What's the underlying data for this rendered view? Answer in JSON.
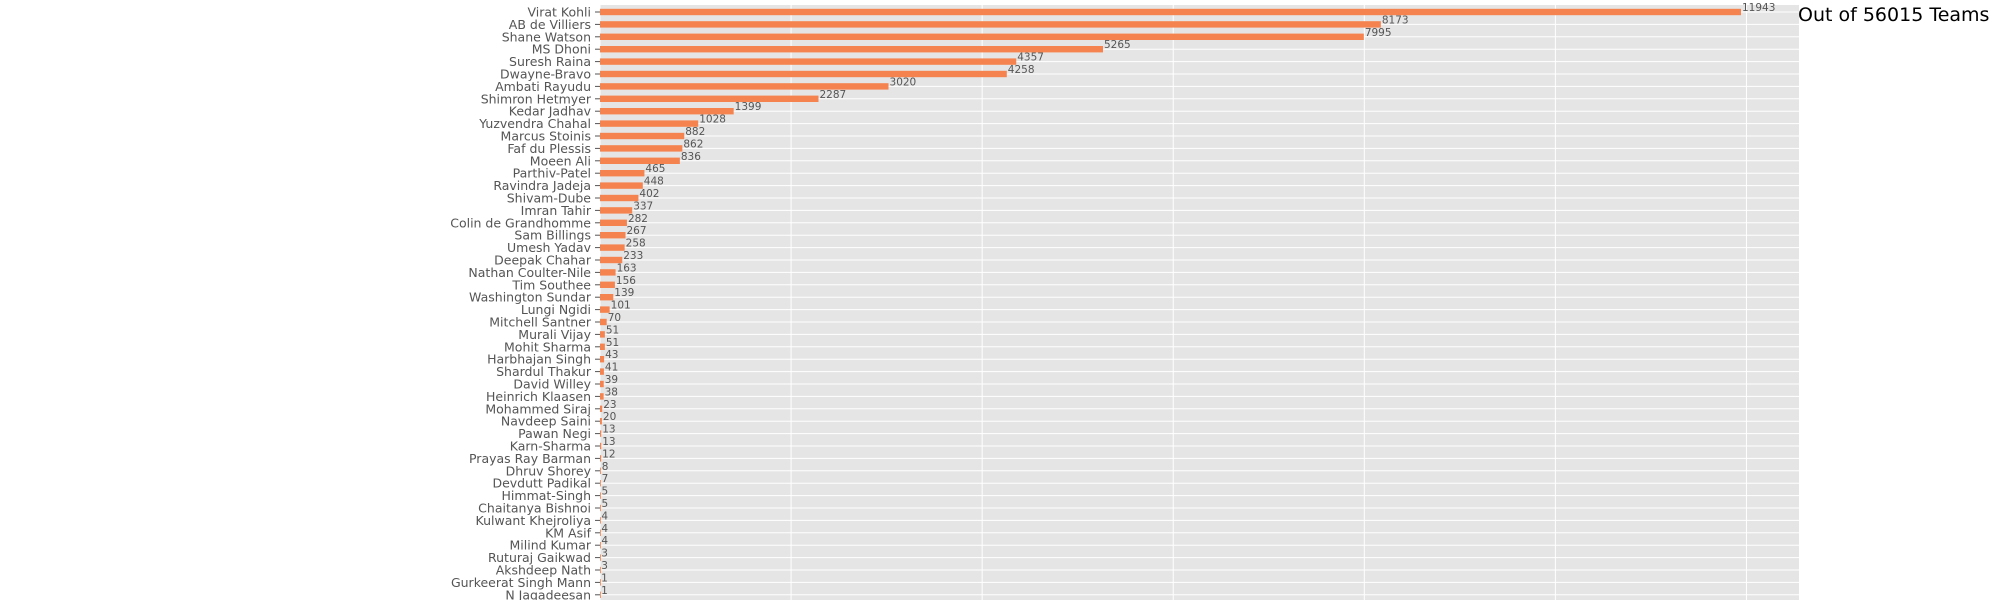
{
  "chart_data": {
    "type": "bar",
    "orientation": "horizontal",
    "title": "",
    "annotation": "Out of 56015 Teams",
    "xlabel": "",
    "ylabel": "",
    "xlim": [
      0,
      12550
    ],
    "grid": true,
    "legend": "none",
    "categories": [
      "Virat Kohli",
      "AB de Villiers",
      "Shane Watson",
      "MS Dhoni",
      "Suresh Raina",
      "Dwayne-Bravo",
      "Ambati Rayudu",
      "Shimron Hetmyer",
      "Kedar Jadhav",
      "Yuzvendra Chahal",
      "Marcus Stoinis",
      "Faf du Plessis",
      "Moeen Ali",
      "Parthiv-Patel",
      "Ravindra Jadeja",
      "Shivam-Dube",
      "Imran Tahir",
      "Colin de Grandhomme",
      "Sam Billings",
      "Umesh Yadav",
      "Deepak Chahar",
      "Nathan Coulter-Nile",
      "Tim Southee",
      "Washington Sundar",
      "Lungi Ngidi",
      "Mitchell Santner",
      "Murali Vijay",
      "Mohit Sharma",
      "Harbhajan Singh",
      "Shardul Thakur",
      "David Willey",
      "Heinrich Klaasen",
      "Mohammed Siraj",
      "Navdeep Saini",
      "Pawan Negi",
      "Karn-Sharma",
      "Prayas Ray Barman",
      "Dhruv Shorey",
      "Devdutt Padikal",
      "Himmat-Singh",
      "Chaitanya Bishnoi",
      "Kulwant Khejroliya",
      "KM Asif",
      "Milind Kumar",
      "Ruturaj Gaikwad",
      "Akshdeep Nath",
      "Gurkeerat Singh Mann",
      "N Jagadeesan"
    ],
    "values": [
      11943,
      8173,
      7995,
      5265,
      4357,
      4258,
      3020,
      2287,
      1399,
      1028,
      882,
      862,
      836,
      465,
      448,
      402,
      337,
      282,
      267,
      258,
      233,
      163,
      156,
      139,
      101,
      70,
      51,
      51,
      43,
      41,
      39,
      38,
      23,
      20,
      13,
      13,
      12,
      8,
      7,
      5,
      5,
      4,
      4,
      4,
      3,
      3,
      1,
      1
    ],
    "colors": {
      "bar": "#F5834F",
      "plot_background": "#E5E5E5",
      "grid": "#FFFFFF",
      "label_text": "#555555"
    }
  }
}
